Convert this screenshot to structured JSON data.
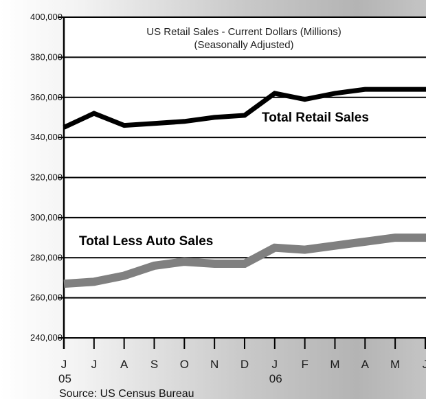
{
  "chart_data": {
    "type": "line",
    "title": "US Retail Sales - Current Dollars (Millions)",
    "subtitle": "(Seasonally Adjusted)",
    "categories": [
      "J",
      "J",
      "A",
      "S",
      "O",
      "N",
      "D",
      "J",
      "F",
      "M",
      "A",
      "M",
      "J"
    ],
    "year_labels": [
      {
        "index": 0,
        "label": "05"
      },
      {
        "index": 7,
        "label": "06"
      }
    ],
    "ylim": [
      240000,
      400000
    ],
    "yticks": [
      "400,000",
      "380,000",
      "360,000",
      "340,000",
      "320,000",
      "300,000",
      "280,000",
      "260,000",
      "240,000"
    ],
    "ytick_values": [
      400000,
      380000,
      360000,
      340000,
      320000,
      300000,
      280000,
      260000,
      240000
    ],
    "grid": true,
    "series": [
      {
        "name": "Total Retail Sales",
        "color": "#000000",
        "values": [
          345000,
          352000,
          346000,
          347000,
          348000,
          350000,
          351000,
          362000,
          359000,
          362000,
          364000,
          364000,
          364000
        ]
      },
      {
        "name": "Total Less Auto Sales",
        "color": "#808080",
        "values": [
          267000,
          268000,
          271000,
          276000,
          278000,
          277000,
          277000,
          285000,
          284000,
          286000,
          288000,
          290000,
          290000
        ]
      }
    ],
    "source": "Source:  US Census Bureau"
  }
}
